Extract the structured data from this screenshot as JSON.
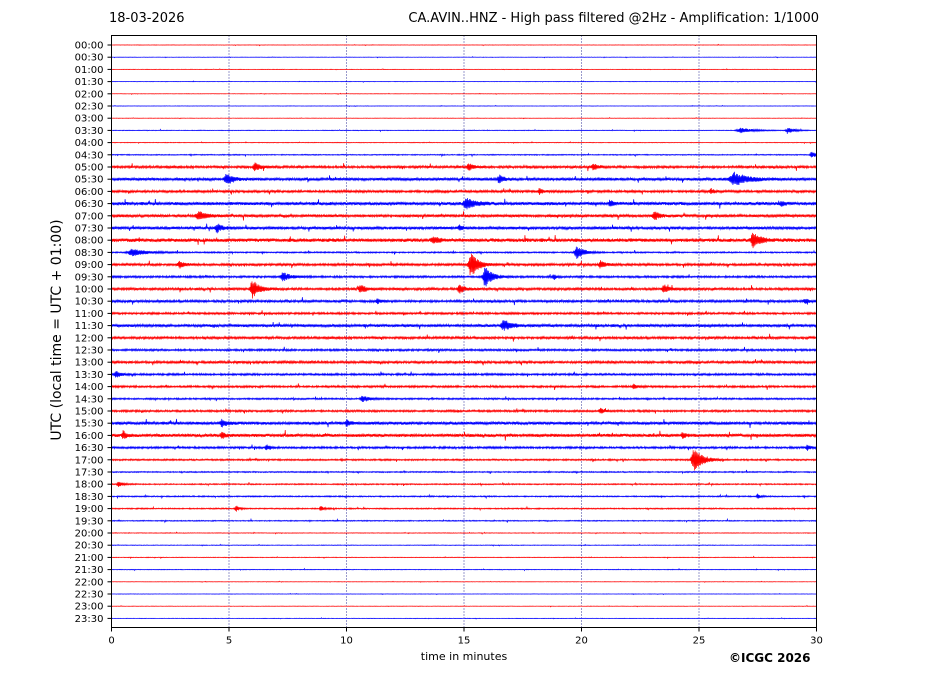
{
  "header": {
    "date": "18-03-2026",
    "title": "CA.AVIN..HNZ - High pass filtered @2Hz - Amplification: 1/1000"
  },
  "copyright": "©ICGC 2026",
  "colors": {
    "trace_a": "#ff0000",
    "trace_b": "#0000ff",
    "grid": "#000080",
    "frame": "#000000"
  },
  "chart_data": {
    "type": "line",
    "title": "CA.AVIN..HNZ - High pass filtered @2Hz - Amplification: 1/1000",
    "xlabel": "time in minutes",
    "ylabel": "UTC (local time = UTC + 01:00)",
    "xlim": [
      0,
      30
    ],
    "x_ticks": [
      0,
      5,
      10,
      15,
      20,
      25,
      30
    ],
    "grid": "vertical dotted lines at x ticks",
    "y_ticks": [
      "00:00",
      "00:30",
      "01:00",
      "01:30",
      "02:00",
      "02:30",
      "03:00",
      "03:30",
      "04:00",
      "04:30",
      "05:00",
      "05:30",
      "06:00",
      "06:30",
      "07:00",
      "07:30",
      "08:00",
      "08:30",
      "09:00",
      "09:30",
      "10:00",
      "10:30",
      "11:00",
      "11:30",
      "12:00",
      "12:30",
      "13:00",
      "13:30",
      "14:00",
      "14:30",
      "15:00",
      "15:30",
      "16:00",
      "16:30",
      "17:00",
      "17:30",
      "18:00",
      "18:30",
      "19:00",
      "19:30",
      "20:00",
      "20:30",
      "21:00",
      "21:30",
      "22:00",
      "22:30",
      "23:00",
      "23:30"
    ],
    "trace_colors": [
      "red",
      "blue"
    ],
    "series": [
      {
        "row": "00:00",
        "noise": 0.2,
        "events": []
      },
      {
        "row": "00:30",
        "noise": 0.2,
        "events": []
      },
      {
        "row": "01:00",
        "noise": 0.2,
        "events": []
      },
      {
        "row": "01:30",
        "noise": 0.2,
        "events": []
      },
      {
        "row": "02:00",
        "noise": 0.2,
        "events": []
      },
      {
        "row": "02:30",
        "noise": 0.2,
        "events": []
      },
      {
        "row": "03:00",
        "noise": 0.2,
        "events": []
      },
      {
        "row": "03:30",
        "noise": 0.3,
        "events": [
          {
            "t": 26.8,
            "amp": 2.5,
            "dur": 0.8
          },
          {
            "t": 28.8,
            "amp": 3,
            "dur": 0.4
          }
        ]
      },
      {
        "row": "04:00",
        "noise": 0.3,
        "events": []
      },
      {
        "row": "04:30",
        "noise": 0.5,
        "events": [
          {
            "t": 29.8,
            "amp": 3,
            "dur": 0.3
          }
        ]
      },
      {
        "row": "05:00",
        "noise": 1.2,
        "events": [
          {
            "t": 6.1,
            "amp": 4.5,
            "dur": 0.3
          },
          {
            "t": 15.2,
            "amp": 3.5,
            "dur": 0.3
          },
          {
            "t": 20.5,
            "amp": 3,
            "dur": 0.3
          }
        ]
      },
      {
        "row": "05:30",
        "noise": 1.4,
        "events": [
          {
            "t": 4.9,
            "amp": 5.5,
            "dur": 0.4
          },
          {
            "t": 16.5,
            "amp": 4,
            "dur": 0.3
          },
          {
            "t": 26.5,
            "amp": 6.5,
            "dur": 0.8
          }
        ]
      },
      {
        "row": "06:00",
        "noise": 1.2,
        "events": [
          {
            "t": 18.2,
            "amp": 3,
            "dur": 0.2
          },
          {
            "t": 25.5,
            "amp": 3,
            "dur": 0.2
          }
        ]
      },
      {
        "row": "06:30",
        "noise": 1.6,
        "events": [
          {
            "t": 15.1,
            "amp": 5.5,
            "dur": 0.5
          },
          {
            "t": 21.2,
            "amp": 3,
            "dur": 0.2
          },
          {
            "t": 28.5,
            "amp": 3,
            "dur": 0.2
          }
        ]
      },
      {
        "row": "07:00",
        "noise": 1.4,
        "events": [
          {
            "t": 3.7,
            "amp": 4,
            "dur": 0.5
          },
          {
            "t": 23.1,
            "amp": 5,
            "dur": 0.3
          }
        ]
      },
      {
        "row": "07:30",
        "noise": 1.4,
        "events": [
          {
            "t": 4.5,
            "amp": 4.5,
            "dur": 0.3
          },
          {
            "t": 14.8,
            "amp": 3,
            "dur": 0.2
          }
        ]
      },
      {
        "row": "08:00",
        "noise": 1.8,
        "events": [
          {
            "t": 13.7,
            "amp": 3,
            "dur": 0.4
          },
          {
            "t": 27.3,
            "amp": 8,
            "dur": 0.4
          }
        ]
      },
      {
        "row": "08:30",
        "noise": 0.7,
        "events": [
          {
            "t": 0.9,
            "amp": 3.5,
            "dur": 0.8
          },
          {
            "t": 19.8,
            "amp": 7,
            "dur": 0.4
          }
        ]
      },
      {
        "row": "09:00",
        "noise": 1.2,
        "events": [
          {
            "t": 2.9,
            "amp": 3.5,
            "dur": 0.3
          },
          {
            "t": 15.3,
            "amp": 13,
            "dur": 0.4
          },
          {
            "t": 20.8,
            "amp": 4,
            "dur": 0.3
          }
        ]
      },
      {
        "row": "09:30",
        "noise": 1.0,
        "events": [
          {
            "t": 7.3,
            "amp": 4.5,
            "dur": 0.4
          },
          {
            "t": 15.9,
            "amp": 11,
            "dur": 0.4
          },
          {
            "t": 18.8,
            "amp": 2.5,
            "dur": 0.2
          }
        ]
      },
      {
        "row": "10:00",
        "noise": 1.2,
        "events": [
          {
            "t": 6.0,
            "amp": 9,
            "dur": 0.4
          },
          {
            "t": 10.6,
            "amp": 5,
            "dur": 0.3
          },
          {
            "t": 14.8,
            "amp": 5,
            "dur": 0.3
          },
          {
            "t": 23.5,
            "amp": 4,
            "dur": 0.3
          }
        ]
      },
      {
        "row": "10:30",
        "noise": 1.2,
        "events": [
          {
            "t": 11.3,
            "amp": 3,
            "dur": 0.2
          },
          {
            "t": 29.5,
            "amp": 3,
            "dur": 0.2
          }
        ]
      },
      {
        "row": "11:00",
        "noise": 1.0,
        "events": []
      },
      {
        "row": "11:30",
        "noise": 1.4,
        "events": [
          {
            "t": 16.7,
            "amp": 5,
            "dur": 0.5
          }
        ]
      },
      {
        "row": "12:00",
        "noise": 1.2,
        "events": []
      },
      {
        "row": "12:30",
        "noise": 1.0,
        "events": []
      },
      {
        "row": "13:00",
        "noise": 1.2,
        "events": []
      },
      {
        "row": "13:30",
        "noise": 1.0,
        "events": [
          {
            "t": 0.2,
            "amp": 3.5,
            "dur": 0.3
          }
        ]
      },
      {
        "row": "14:00",
        "noise": 1.0,
        "events": [
          {
            "t": 22.2,
            "amp": 3,
            "dur": 0.2
          }
        ]
      },
      {
        "row": "14:30",
        "noise": 0.8,
        "events": [
          {
            "t": 10.7,
            "amp": 3,
            "dur": 0.4
          }
        ]
      },
      {
        "row": "15:00",
        "noise": 1.0,
        "events": [
          {
            "t": 20.8,
            "amp": 3.5,
            "dur": 0.2
          }
        ]
      },
      {
        "row": "15:30",
        "noise": 1.5,
        "events": [
          {
            "t": 4.7,
            "amp": 4,
            "dur": 0.3
          },
          {
            "t": 10.0,
            "amp": 4,
            "dur": 0.2
          }
        ]
      },
      {
        "row": "16:00",
        "noise": 1.6,
        "events": [
          {
            "t": 0.5,
            "amp": 4,
            "dur": 0.2
          },
          {
            "t": 4.7,
            "amp": 4,
            "dur": 0.2
          },
          {
            "t": 24.3,
            "amp": 3,
            "dur": 0.2
          }
        ]
      },
      {
        "row": "16:30",
        "noise": 1.0,
        "events": [
          {
            "t": 6.6,
            "amp": 3,
            "dur": 0.2
          },
          {
            "t": 29.6,
            "amp": 3,
            "dur": 0.2
          }
        ]
      },
      {
        "row": "17:00",
        "noise": 0.8,
        "events": [
          {
            "t": 24.8,
            "amp": 12,
            "dur": 0.5
          }
        ]
      },
      {
        "row": "17:30",
        "noise": 0.6,
        "events": []
      },
      {
        "row": "18:00",
        "noise": 0.6,
        "events": [
          {
            "t": 0.3,
            "amp": 2.5,
            "dur": 0.3
          }
        ]
      },
      {
        "row": "18:30",
        "noise": 0.6,
        "events": [
          {
            "t": 27.5,
            "amp": 2.5,
            "dur": 0.2
          }
        ]
      },
      {
        "row": "19:00",
        "noise": 0.6,
        "events": [
          {
            "t": 5.3,
            "amp": 3,
            "dur": 0.2
          },
          {
            "t": 8.9,
            "amp": 2.5,
            "dur": 0.2
          }
        ]
      },
      {
        "row": "19:30",
        "noise": 0.5,
        "events": []
      },
      {
        "row": "20:00",
        "noise": 0.3,
        "events": []
      },
      {
        "row": "20:30",
        "noise": 0.3,
        "events": []
      },
      {
        "row": "21:00",
        "noise": 0.3,
        "events": []
      },
      {
        "row": "21:30",
        "noise": 0.3,
        "events": []
      },
      {
        "row": "22:00",
        "noise": 0.2,
        "events": []
      },
      {
        "row": "22:30",
        "noise": 0.2,
        "events": []
      },
      {
        "row": "23:00",
        "noise": 0.2,
        "events": []
      },
      {
        "row": "23:30",
        "noise": 0.2,
        "events": []
      }
    ]
  }
}
